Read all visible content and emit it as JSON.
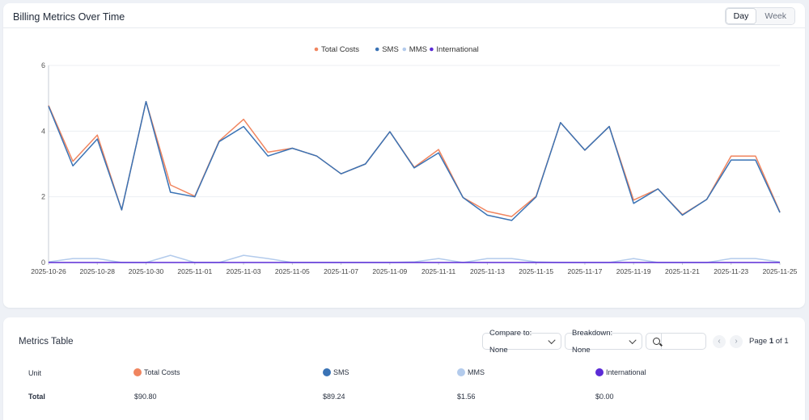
{
  "header": {
    "title": "Billing Metrics Over Time",
    "toggle": [
      "Day",
      "Week"
    ],
    "active_toggle": "Day"
  },
  "colors": {
    "total_costs": "#f0855f",
    "sms": "#3a73b5",
    "mms": "#b3cbec",
    "international": "#5b2bd6"
  },
  "chart_data": {
    "type": "line",
    "title": "",
    "legend_position": "top-center",
    "ylim": [
      0,
      6
    ],
    "yticks": [
      "0",
      "2",
      "4",
      "6"
    ],
    "grid": true,
    "x": [
      "2025-10-26",
      "2025-10-27",
      "2025-10-28",
      "2025-10-29",
      "2025-10-30",
      "2025-10-31",
      "2025-11-01",
      "2025-11-02",
      "2025-11-03",
      "2025-11-04",
      "2025-11-05",
      "2025-11-06",
      "2025-11-07",
      "2025-11-08",
      "2025-11-09",
      "2025-11-10",
      "2025-11-11",
      "2025-11-12",
      "2025-11-13",
      "2025-11-14",
      "2025-11-15",
      "2025-11-16",
      "2025-11-17",
      "2025-11-18",
      "2025-11-19",
      "2025-11-20",
      "2025-11-21",
      "2025-11-22",
      "2025-11-23",
      "2025-11-24",
      "2025-11-25"
    ],
    "xtick_labels": [
      "2025-10-26",
      "2025-10-28",
      "2025-10-30",
      "2025-11-01",
      "2025-11-03",
      "2025-11-05",
      "2025-11-07",
      "2025-11-09",
      "2025-11-11",
      "2025-11-13",
      "2025-11-15",
      "2025-11-17",
      "2025-11-19",
      "2025-11-21",
      "2025-11-23",
      "2025-11-25"
    ],
    "series": [
      {
        "name": "Total Costs",
        "color": "#f0855f",
        "values": [
          4.78,
          3.08,
          3.88,
          1.6,
          4.9,
          2.36,
          2.02,
          3.7,
          4.36,
          3.36,
          3.48,
          3.24,
          2.7,
          3.0,
          3.98,
          2.9,
          3.44,
          1.98,
          1.56,
          1.4,
          2.02,
          4.26,
          3.42,
          4.14,
          1.9,
          2.24,
          1.46,
          1.92,
          3.24,
          3.24,
          1.54
        ]
      },
      {
        "name": "SMS",
        "color": "#3a73b5",
        "values": [
          4.76,
          2.94,
          3.76,
          1.6,
          4.9,
          2.14,
          2.0,
          3.68,
          4.14,
          3.24,
          3.48,
          3.24,
          2.7,
          3.0,
          3.98,
          2.88,
          3.34,
          1.98,
          1.44,
          1.28,
          2.0,
          4.26,
          3.42,
          4.14,
          1.8,
          2.24,
          1.44,
          1.92,
          3.12,
          3.12,
          1.52
        ]
      },
      {
        "name": "MMS",
        "color": "#b3cbec",
        "values": [
          0.02,
          0.12,
          0.12,
          0.0,
          0.0,
          0.22,
          0.0,
          0.0,
          0.22,
          0.12,
          0.0,
          0.0,
          0.0,
          0.0,
          0.0,
          0.02,
          0.12,
          0.0,
          0.12,
          0.12,
          0.02,
          0.0,
          0.0,
          0.0,
          0.12,
          0.0,
          0.0,
          0.0,
          0.12,
          0.12,
          0.02
        ]
      },
      {
        "name": "International",
        "color": "#5b2bd6",
        "values": [
          0,
          0,
          0,
          0,
          0,
          0,
          0,
          0,
          0,
          0,
          0,
          0,
          0,
          0,
          0,
          0,
          0,
          0,
          0,
          0,
          0,
          0,
          0,
          0,
          0,
          0,
          0,
          0,
          0,
          0,
          0
        ]
      }
    ]
  },
  "table": {
    "title": "Metrics Table",
    "compare_label": "Compare to: None",
    "breakdown_label": "Breakdown: None",
    "search_placeholder": "",
    "prev_glyph": "‹",
    "next_glyph": "›",
    "page_prefix": "Page",
    "page_current": "1",
    "page_suffix": "of 1",
    "unit_header": "Unit",
    "columns": [
      "Total Costs",
      "SMS",
      "MMS",
      "International"
    ],
    "row_label": "Total",
    "row_values": [
      "$90.80",
      "$89.24",
      "$1.56",
      "$0.00"
    ]
  }
}
